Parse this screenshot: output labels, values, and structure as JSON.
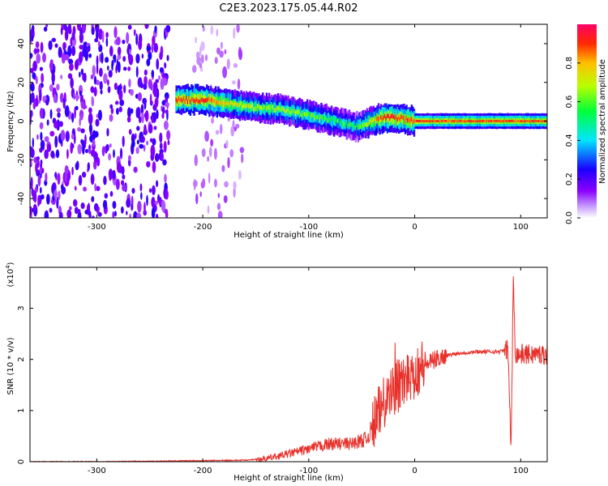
{
  "title": "C2E3.2023.175.05.44.R02",
  "chart_data": [
    {
      "type": "heatmap",
      "title": "",
      "xlabel": "Height of straight line (km)",
      "ylabel": "Frequency (Hz)",
      "xlim": [
        -363,
        125
      ],
      "ylim": [
        -50,
        50
      ],
      "xticks": [
        -300,
        -200,
        -100,
        0,
        100
      ],
      "yticks": [
        -40,
        -20,
        0,
        20,
        40
      ],
      "colorbar": {
        "label": "Normalized spectral amplitude",
        "ticks": [
          "0.0",
          "0.2",
          "0.4",
          "0.6",
          "0.8"
        ],
        "range": [
          0,
          1
        ],
        "colormap": [
          "#ffffff",
          "#8a00ff",
          "#0000ff",
          "#00e5ff",
          "#00ff3c",
          "#b8ff00",
          "#ffbf00",
          "#ff2a00",
          "#ff0066"
        ]
      },
      "ridge": {
        "x": [
          -225,
          -200,
          -175,
          -150,
          -125,
          -100,
          -75,
          -55,
          -45,
          -35,
          -25,
          -10,
          0,
          25,
          50,
          75,
          100,
          125
        ],
        "frequency": [
          11,
          11,
          9,
          7,
          6,
          3,
          0,
          -3,
          -1,
          1,
          2,
          1,
          0,
          0,
          0,
          0,
          0,
          0
        ],
        "peak_amplitude": [
          0.85,
          0.9,
          0.7,
          0.6,
          0.6,
          0.55,
          0.5,
          0.5,
          0.6,
          0.8,
          0.9,
          0.85,
          0.85,
          0.85,
          0.85,
          0.85,
          0.85,
          0.85
        ]
      },
      "noise_region": {
        "x_end": -160,
        "amplitude": "low"
      }
    },
    {
      "type": "line",
      "title": "",
      "xlabel": "Height of straight line (km)",
      "ylabel": "SNR (10 * v/v)",
      "y_multiplier": "(x10",
      "y_multiplier_exp": "4",
      "xlim": [
        -363,
        125
      ],
      "ylim": [
        0,
        3.8
      ],
      "xticks": [
        -300,
        -200,
        -100,
        0,
        100
      ],
      "yticks": [
        0,
        1,
        2,
        3
      ],
      "series": [
        {
          "color": "#e8302a",
          "x": [
            -363,
            -300,
            -250,
            -200,
            -160,
            -140,
            -120,
            -100,
            -80,
            -60,
            -45,
            -35,
            -25,
            -15,
            -5,
            5,
            15,
            25,
            40,
            60,
            80,
            88,
            91,
            93,
            95,
            100,
            110,
            125
          ],
          "y": [
            0.0,
            0.0,
            0.01,
            0.02,
            0.03,
            0.06,
            0.15,
            0.25,
            0.35,
            0.35,
            0.45,
            0.9,
            1.25,
            1.5,
            1.7,
            1.85,
            1.95,
            2.05,
            2.12,
            2.15,
            2.15,
            2.2,
            0.2,
            3.7,
            2.1,
            2.1,
            2.1,
            2.1
          ]
        }
      ]
    }
  ]
}
